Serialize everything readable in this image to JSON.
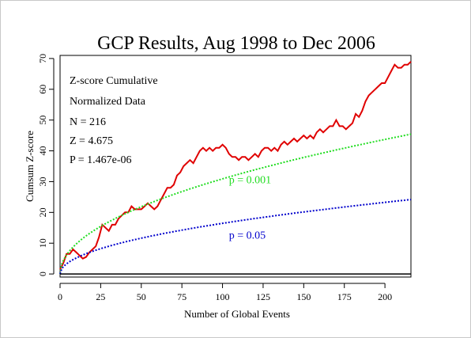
{
  "chart_data": {
    "type": "line",
    "title": "GCP Results, Aug 1998 to Dec 2006",
    "xlabel": "Number of Global Events",
    "ylabel": "Cumsum Z-score",
    "xlim": [
      0,
      216
    ],
    "ylim": [
      -1,
      71
    ],
    "xticks": [
      0,
      25,
      50,
      75,
      100,
      125,
      150,
      175,
      200
    ],
    "yticks": [
      0,
      10,
      20,
      30,
      40,
      50,
      60,
      70
    ],
    "grid": false,
    "legend": "none",
    "stats_text": [
      "Z-score Cumulative",
      "Normalized Data",
      "N = 216",
      "Z = 4.675",
      "P = 1.467e-06"
    ],
    "series": [
      {
        "name": "",
        "style": "solid",
        "color": "#e00000",
        "points": [
          [
            0,
            1.5
          ],
          [
            2,
            3.5
          ],
          [
            4,
            6.5
          ],
          [
            6,
            6.5
          ],
          [
            8,
            8
          ],
          [
            10,
            7
          ],
          [
            12,
            6
          ],
          [
            14,
            5
          ],
          [
            16,
            5.5
          ],
          [
            18,
            7
          ],
          [
            20,
            8
          ],
          [
            22,
            9
          ],
          [
            24,
            12
          ],
          [
            26,
            16
          ],
          [
            28,
            15
          ],
          [
            30,
            14
          ],
          [
            32,
            16
          ],
          [
            34,
            16
          ],
          [
            36,
            18
          ],
          [
            38,
            19
          ],
          [
            40,
            20
          ],
          [
            42,
            20
          ],
          [
            44,
            22
          ],
          [
            46,
            21
          ],
          [
            48,
            21
          ],
          [
            50,
            21
          ],
          [
            52,
            22
          ],
          [
            54,
            23
          ],
          [
            56,
            22
          ],
          [
            58,
            21
          ],
          [
            60,
            22
          ],
          [
            62,
            24
          ],
          [
            64,
            26
          ],
          [
            66,
            28
          ],
          [
            68,
            28
          ],
          [
            70,
            29
          ],
          [
            72,
            32
          ],
          [
            74,
            33
          ],
          [
            76,
            35
          ],
          [
            78,
            36
          ],
          [
            80,
            37
          ],
          [
            82,
            36
          ],
          [
            84,
            38
          ],
          [
            86,
            40
          ],
          [
            88,
            41
          ],
          [
            90,
            40
          ],
          [
            92,
            41
          ],
          [
            94,
            40
          ],
          [
            96,
            41
          ],
          [
            98,
            41
          ],
          [
            100,
            42
          ],
          [
            102,
            41
          ],
          [
            104,
            39
          ],
          [
            106,
            38
          ],
          [
            108,
            38
          ],
          [
            110,
            37
          ],
          [
            112,
            38
          ],
          [
            114,
            38
          ],
          [
            116,
            37
          ],
          [
            118,
            38
          ],
          [
            120,
            39
          ],
          [
            122,
            38
          ],
          [
            124,
            40
          ],
          [
            126,
            41
          ],
          [
            128,
            41
          ],
          [
            130,
            40
          ],
          [
            132,
            41
          ],
          [
            134,
            40
          ],
          [
            136,
            42
          ],
          [
            138,
            43
          ],
          [
            140,
            42
          ],
          [
            142,
            43
          ],
          [
            144,
            44
          ],
          [
            146,
            43
          ],
          [
            148,
            44
          ],
          [
            150,
            45
          ],
          [
            152,
            44
          ],
          [
            154,
            45
          ],
          [
            156,
            44
          ],
          [
            158,
            46
          ],
          [
            160,
            47
          ],
          [
            162,
            46
          ],
          [
            164,
            47
          ],
          [
            166,
            48
          ],
          [
            168,
            48
          ],
          [
            170,
            50
          ],
          [
            172,
            48
          ],
          [
            174,
            48
          ],
          [
            176,
            47
          ],
          [
            178,
            48
          ],
          [
            180,
            49
          ],
          [
            182,
            52
          ],
          [
            184,
            51
          ],
          [
            186,
            53
          ],
          [
            188,
            56
          ],
          [
            190,
            58
          ],
          [
            192,
            59
          ],
          [
            194,
            60
          ],
          [
            196,
            61
          ],
          [
            198,
            62
          ],
          [
            200,
            62
          ],
          [
            202,
            64
          ],
          [
            204,
            66
          ],
          [
            206,
            68
          ],
          [
            208,
            67
          ],
          [
            210,
            67
          ],
          [
            212,
            68
          ],
          [
            214,
            68
          ],
          [
            216,
            69
          ]
        ]
      },
      {
        "name": "",
        "style": "dotted",
        "color": "#22dd22",
        "annotation": "p = 0.001",
        "annotation_at": [
          104,
          29.5
        ],
        "formula": "3.09*sqrt(x)"
      },
      {
        "name": "",
        "style": "dotted",
        "color": "#0000cc",
        "annotation": "p = 0.05",
        "annotation_at": [
          104,
          11.5
        ],
        "formula": "1.645*sqrt(x)"
      },
      {
        "name": "",
        "style": "solid",
        "color": "#000000",
        "formula": "0"
      }
    ]
  },
  "colors": {
    "background": "#ffffff",
    "axes": "#000000"
  }
}
